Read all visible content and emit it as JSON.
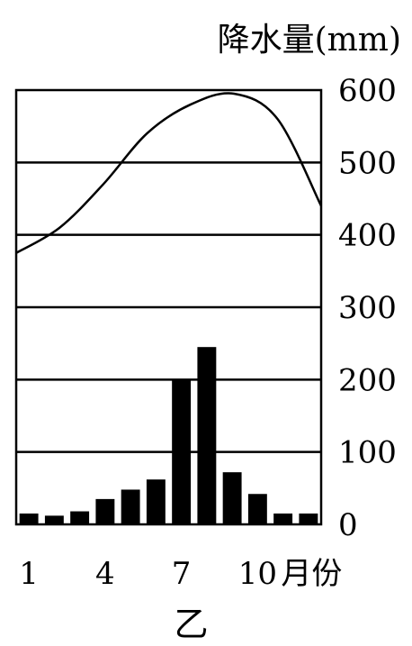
{
  "chart_data": {
    "type": "bar",
    "title": "乙",
    "ylabel": "降水量(mm)",
    "xlabel": "月份",
    "ylim": [
      0,
      600
    ],
    "y_ticks": [
      "0",
      "100",
      "200",
      "300",
      "400",
      "500",
      "600"
    ],
    "x_tick_labels": [
      "1",
      "4",
      "7",
      "10"
    ],
    "x_unit": "月份",
    "categories": [
      1,
      2,
      3,
      4,
      5,
      6,
      7,
      8,
      9,
      10,
      11,
      12
    ],
    "series": [
      {
        "values": [
          15,
          12,
          18,
          35,
          48,
          62,
          200,
          245,
          72,
          42,
          15,
          15
        ]
      }
    ],
    "curve": {
      "values": [
        375,
        410,
        470,
        540,
        580,
        595,
        560,
        440
      ]
    },
    "grid": true,
    "colors": {
      "bars": "#000000",
      "line": "#000000",
      "grid": "#000000"
    }
  }
}
